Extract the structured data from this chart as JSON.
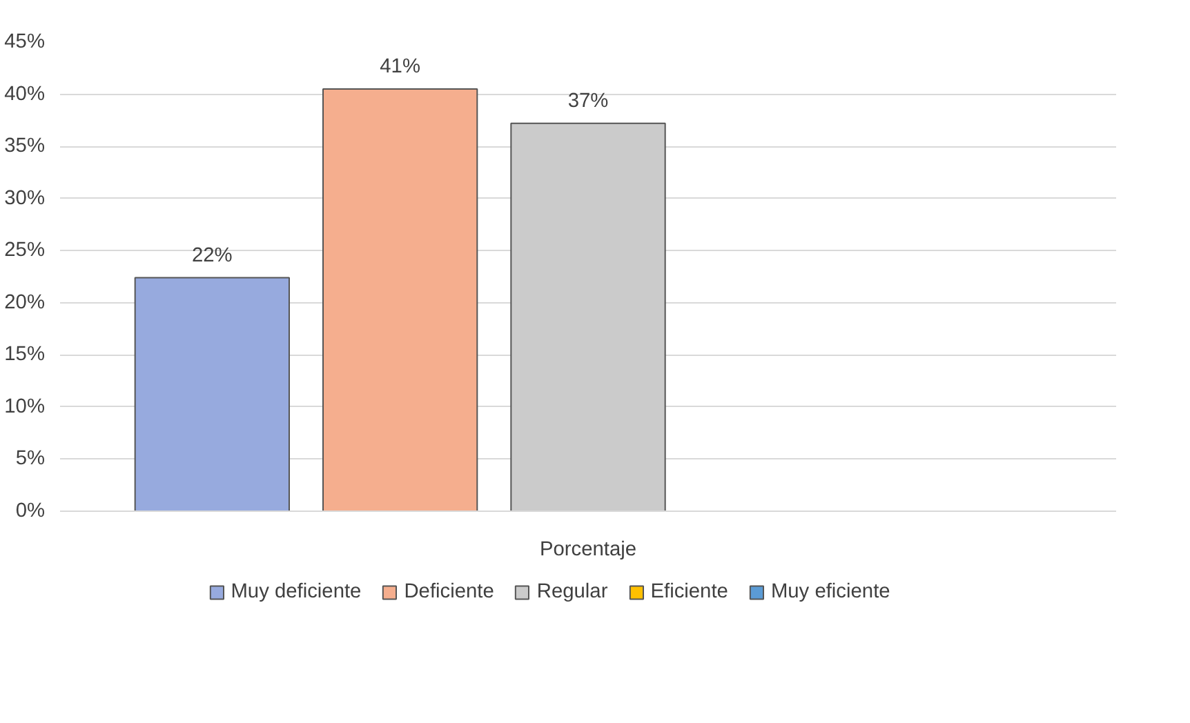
{
  "chart_data": {
    "type": "bar",
    "categories": [
      "Porcentaje"
    ],
    "series": [
      {
        "name": "Muy deficiente",
        "color": "#97aade",
        "values": [
          22.4
        ],
        "value_labels": [
          "22%"
        ]
      },
      {
        "name": "Deficiente",
        "color": "#f5ae8e",
        "values": [
          40.5
        ],
        "value_labels": [
          "41%"
        ]
      },
      {
        "name": "Regular",
        "color": "#cbcbcb",
        "values": [
          37.2
        ],
        "value_labels": [
          "37%"
        ]
      },
      {
        "name": "Eficiente",
        "color": "#ffc000",
        "values": [
          null
        ],
        "value_labels": [
          null
        ]
      },
      {
        "name": "Muy eficiente",
        "color": "#5b9bd5",
        "values": [
          null
        ],
        "value_labels": [
          null
        ]
      }
    ],
    "ylim": [
      0,
      45
    ],
    "yticks": [
      {
        "value": 0,
        "label": "0%"
      },
      {
        "value": 5,
        "label": "5%"
      },
      {
        "value": 10,
        "label": "10%"
      },
      {
        "value": 15,
        "label": "15%"
      },
      {
        "value": 20,
        "label": "20%"
      },
      {
        "value": 25,
        "label": "25%"
      },
      {
        "value": 30,
        "label": "30%"
      },
      {
        "value": 35,
        "label": "35%"
      },
      {
        "value": 40,
        "label": "40%"
      },
      {
        "value": 45,
        "label": "45%"
      }
    ],
    "grid": "y",
    "legend": "bottom"
  }
}
